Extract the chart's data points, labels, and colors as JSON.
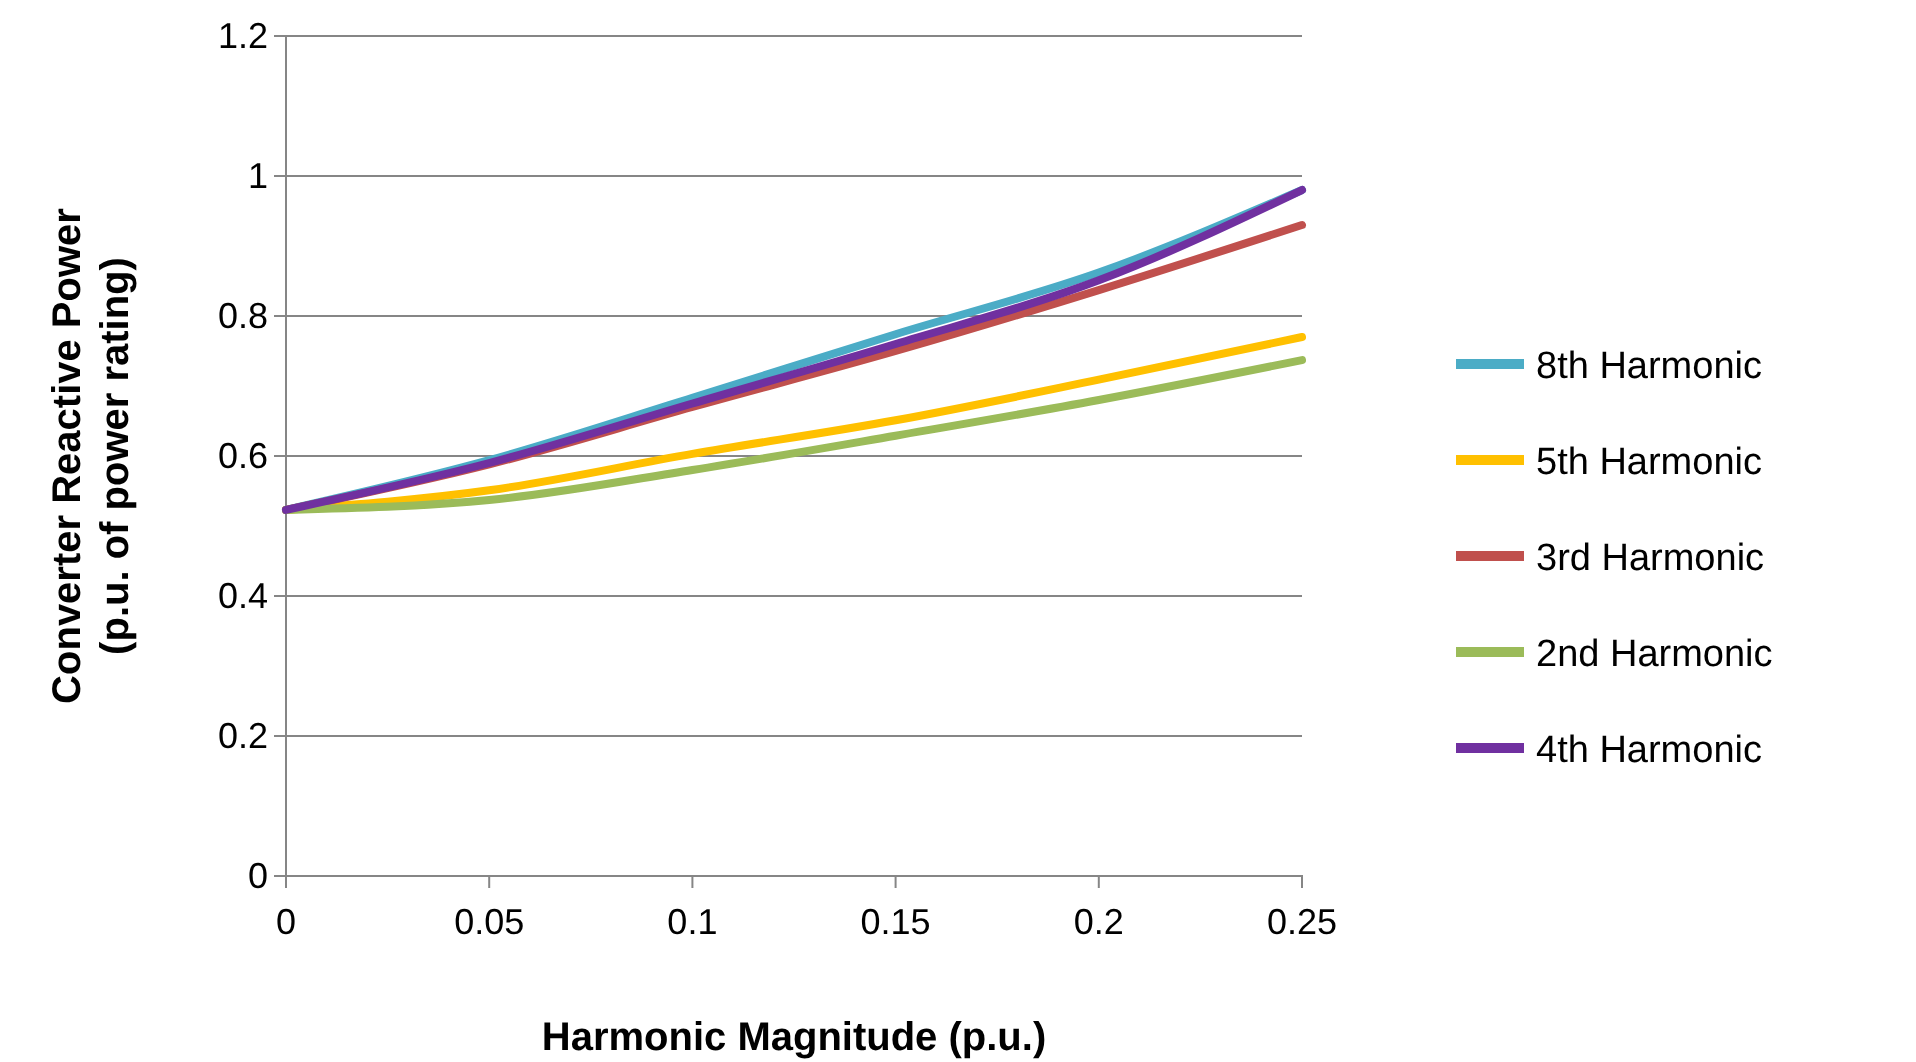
{
  "chart_data": {
    "type": "line",
    "xlabel": "Harmonic Magnitude (p.u.)",
    "ylabel": "Converter Reactive Power\n(p.u. of power rating)",
    "x": [
      0,
      0.05,
      0.1,
      0.15,
      0.2,
      0.25
    ],
    "series": [
      {
        "name": "8th Harmonic",
        "color": "#4bacc6",
        "values": [
          0.523,
          0.594,
          0.683,
          0.774,
          0.862,
          0.98
        ]
      },
      {
        "name": "5th Harmonic",
        "color": "#ffc000",
        "values": [
          0.523,
          0.551,
          0.603,
          0.651,
          0.709,
          0.77
        ]
      },
      {
        "name": "3rd Harmonic",
        "color": "#c0504d",
        "values": [
          0.523,
          0.588,
          0.67,
          0.75,
          0.837,
          0.93
        ]
      },
      {
        "name": "2nd Harmonic",
        "color": "#9bbb59",
        "values": [
          0.523,
          0.537,
          0.58,
          0.629,
          0.68,
          0.737
        ]
      },
      {
        "name": "4th Harmonic",
        "color": "#7030a0",
        "values": [
          0.523,
          0.59,
          0.675,
          0.76,
          0.851,
          0.98
        ]
      }
    ],
    "xlim": [
      0,
      0.25
    ],
    "xticks": [
      0,
      0.05,
      0.1,
      0.15,
      0.2,
      0.25
    ],
    "ylim": [
      0,
      1.2
    ],
    "yticks": [
      0,
      0.2,
      0.4,
      0.6,
      0.8,
      1,
      1.2
    ],
    "grid": "y",
    "legend": "right",
    "marker": "none",
    "line_style": "solid"
  }
}
